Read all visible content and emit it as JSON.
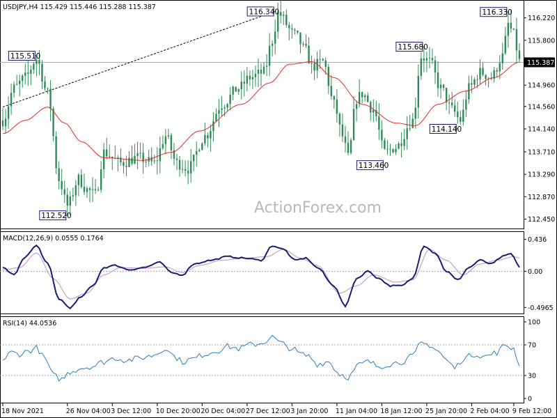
{
  "chart_data": [
    {
      "type": "candlestick",
      "title": "USDJPY,H4  115.429 115.446 115.288 115.387",
      "ylim": [
        112.3,
        116.45
      ],
      "yticks": [
        "116.220",
        "115.800",
        "115.387",
        "114.960",
        "114.560",
        "114.140",
        "113.710",
        "113.290",
        "112.870",
        "112.450"
      ],
      "last_price": "115.387",
      "horizontal_line": 115.387,
      "trendline": {
        "from": [
          0,
          114.55
        ],
        "to": [
          97,
          116.34
        ]
      },
      "annotations": [
        {
          "label": "116.340",
          "bar": 97,
          "price": 116.34
        },
        {
          "label": "115.510",
          "bar": 12,
          "price": 115.51
        },
        {
          "label": "112.520",
          "bar": 23,
          "price": 112.52
        },
        {
          "label": "115.680",
          "bar": 150,
          "price": 115.68
        },
        {
          "label": "114.140",
          "bar": 162,
          "price": 114.14
        },
        {
          "label": "113.460",
          "bar": 136,
          "price": 113.46
        },
        {
          "label": "116.330",
          "bar": 180,
          "price": 116.33
        }
      ],
      "ma_anchors": [
        [
          0,
          114.05
        ],
        [
          8,
          114.3
        ],
        [
          16,
          114.55
        ],
        [
          22,
          114.25
        ],
        [
          28,
          113.9
        ],
        [
          36,
          113.6
        ],
        [
          50,
          113.55
        ],
        [
          60,
          113.7
        ],
        [
          70,
          114.1
        ],
        [
          85,
          114.6
        ],
        [
          95,
          115.0
        ],
        [
          102,
          115.35
        ],
        [
          110,
          115.4
        ],
        [
          118,
          115.1
        ],
        [
          128,
          114.6
        ],
        [
          140,
          114.25
        ],
        [
          147,
          114.2
        ],
        [
          155,
          114.6
        ],
        [
          165,
          114.85
        ],
        [
          175,
          115.1
        ],
        [
          184,
          115.39
        ]
      ],
      "price_anchors": [
        [
          0,
          114.3
        ],
        [
          4,
          114.9
        ],
        [
          8,
          115.1
        ],
        [
          12,
          115.45
        ],
        [
          16,
          114.8
        ],
        [
          20,
          113.2
        ],
        [
          23,
          112.7
        ],
        [
          27,
          113.2
        ],
        [
          30,
          113.0
        ],
        [
          33,
          112.9
        ],
        [
          36,
          113.7
        ],
        [
          42,
          113.5
        ],
        [
          48,
          113.6
        ],
        [
          54,
          113.5
        ],
        [
          58,
          114.0
        ],
        [
          62,
          113.5
        ],
        [
          66,
          113.4
        ],
        [
          72,
          114.0
        ],
        [
          78,
          114.6
        ],
        [
          84,
          114.9
        ],
        [
          88,
          115.1
        ],
        [
          93,
          115.2
        ],
        [
          96,
          115.8
        ],
        [
          98,
          116.3
        ],
        [
          104,
          115.9
        ],
        [
          108,
          115.6
        ],
        [
          110,
          115.3
        ],
        [
          114,
          115.4
        ],
        [
          118,
          114.6
        ],
        [
          121,
          114.0
        ],
        [
          123,
          113.6
        ],
        [
          126,
          114.7
        ],
        [
          128,
          114.8
        ],
        [
          132,
          114.5
        ],
        [
          136,
          113.7
        ],
        [
          140,
          113.8
        ],
        [
          146,
          114.3
        ],
        [
          149,
          115.5
        ],
        [
          152,
          115.4
        ],
        [
          156,
          114.9
        ],
        [
          160,
          114.5
        ],
        [
          163,
          114.3
        ],
        [
          166,
          114.9
        ],
        [
          170,
          115.2
        ],
        [
          174,
          115.1
        ],
        [
          178,
          115.5
        ],
        [
          180,
          116.1
        ],
        [
          182,
          115.9
        ],
        [
          184,
          115.4
        ]
      ],
      "xticks": [
        {
          "label": "18 Nov 2021",
          "bar": 0
        },
        {
          "label": "26 Nov 04:00",
          "bar": 23
        },
        {
          "label": "3 Dec 12:00",
          "bar": 39
        },
        {
          "label": "10 Dec 20:00",
          "bar": 55
        },
        {
          "label": "20 Dec 04:00",
          "bar": 71
        },
        {
          "label": "27 Dec 12:00",
          "bar": 87
        },
        {
          "label": "3 Jan 20:00",
          "bar": 103
        },
        {
          "label": "11 Jan 04:00",
          "bar": 119
        },
        {
          "label": "18 Jan 12:00",
          "bar": 135
        },
        {
          "label": "25 Jan 20:00",
          "bar": 151
        },
        {
          "label": "2 Feb 04:00",
          "bar": 167
        },
        {
          "label": "9 Feb 12:00",
          "bar": 182
        }
      ],
      "bars": 185,
      "watermark": "ActionForex.com"
    },
    {
      "type": "line",
      "title": "MACD(12,26,9) 0.0555 0.1764",
      "ylim": [
        -0.56,
        0.49
      ],
      "yticks": [
        "0.436",
        "0.00",
        "-0.4965"
      ],
      "zero_line": 0,
      "macd_anchors": [
        [
          0,
          0.05
        ],
        [
          4,
          -0.05
        ],
        [
          8,
          0.2
        ],
        [
          12,
          0.35
        ],
        [
          16,
          0.1
        ],
        [
          20,
          -0.38
        ],
        [
          24,
          -0.5
        ],
        [
          28,
          -0.35
        ],
        [
          32,
          -0.2
        ],
        [
          36,
          0.05
        ],
        [
          40,
          0.08
        ],
        [
          45,
          0.02
        ],
        [
          50,
          0.05
        ],
        [
          56,
          0.12
        ],
        [
          60,
          -0.02
        ],
        [
          64,
          -0.05
        ],
        [
          68,
          0.1
        ],
        [
          74,
          0.15
        ],
        [
          80,
          0.2
        ],
        [
          86,
          0.18
        ],
        [
          92,
          0.15
        ],
        [
          96,
          0.35
        ],
        [
          100,
          0.3
        ],
        [
          104,
          0.15
        ],
        [
          108,
          0.18
        ],
        [
          112,
          0.05
        ],
        [
          118,
          -0.2
        ],
        [
          122,
          -0.48
        ],
        [
          126,
          -0.1
        ],
        [
          130,
          0.0
        ],
        [
          134,
          -0.1
        ],
        [
          138,
          -0.2
        ],
        [
          142,
          -0.2
        ],
        [
          146,
          -0.1
        ],
        [
          150,
          0.35
        ],
        [
          154,
          0.25
        ],
        [
          158,
          0.0
        ],
        [
          162,
          -0.12
        ],
        [
          166,
          0.05
        ],
        [
          170,
          0.15
        ],
        [
          174,
          0.1
        ],
        [
          178,
          0.2
        ],
        [
          181,
          0.24
        ],
        [
          184,
          0.06
        ]
      ],
      "signal_anchors": [
        [
          0,
          0.02
        ],
        [
          6,
          0.05
        ],
        [
          12,
          0.25
        ],
        [
          18,
          -0.1
        ],
        [
          24,
          -0.38
        ],
        [
          30,
          -0.3
        ],
        [
          36,
          -0.05
        ],
        [
          42,
          0.05
        ],
        [
          50,
          0.04
        ],
        [
          58,
          0.06
        ],
        [
          64,
          -0.02
        ],
        [
          70,
          0.08
        ],
        [
          78,
          0.15
        ],
        [
          86,
          0.18
        ],
        [
          94,
          0.2
        ],
        [
          100,
          0.3
        ],
        [
          106,
          0.18
        ],
        [
          112,
          0.08
        ],
        [
          120,
          -0.3
        ],
        [
          126,
          -0.2
        ],
        [
          132,
          -0.05
        ],
        [
          140,
          -0.15
        ],
        [
          146,
          -0.12
        ],
        [
          152,
          0.3
        ],
        [
          158,
          0.15
        ],
        [
          164,
          -0.05
        ],
        [
          170,
          0.1
        ],
        [
          176,
          0.15
        ],
        [
          182,
          0.2
        ],
        [
          184,
          0.18
        ]
      ],
      "bars": 185
    },
    {
      "type": "line",
      "title": "RSI(14) 44.0536",
      "ylim": [
        0,
        100
      ],
      "yticks": [
        "100",
        "70",
        "30",
        "0"
      ],
      "levels": [
        70,
        30
      ],
      "rsi_anchors": [
        [
          0,
          50
        ],
        [
          3,
          60
        ],
        [
          6,
          58
        ],
        [
          9,
          62
        ],
        [
          12,
          66
        ],
        [
          15,
          52
        ],
        [
          18,
          30
        ],
        [
          21,
          25
        ],
        [
          24,
          35
        ],
        [
          28,
          40
        ],
        [
          32,
          42
        ],
        [
          36,
          48
        ],
        [
          40,
          53
        ],
        [
          44,
          50
        ],
        [
          48,
          52
        ],
        [
          52,
          55
        ],
        [
          56,
          60
        ],
        [
          58,
          67
        ],
        [
          61,
          55
        ],
        [
          64,
          48
        ],
        [
          68,
          52
        ],
        [
          72,
          58
        ],
        [
          76,
          62
        ],
        [
          80,
          68
        ],
        [
          84,
          65
        ],
        [
          88,
          70
        ],
        [
          92,
          72
        ],
        [
          96,
          80
        ],
        [
          99,
          72
        ],
        [
          103,
          65
        ],
        [
          106,
          58
        ],
        [
          109,
          55
        ],
        [
          112,
          45
        ],
        [
          116,
          48
        ],
        [
          120,
          32
        ],
        [
          123,
          28
        ],
        [
          127,
          44
        ],
        [
          130,
          48
        ],
        [
          134,
          42
        ],
        [
          138,
          45
        ],
        [
          142,
          48
        ],
        [
          146,
          55
        ],
        [
          149,
          72
        ],
        [
          152,
          70
        ],
        [
          155,
          62
        ],
        [
          158,
          50
        ],
        [
          161,
          40
        ],
        [
          164,
          52
        ],
        [
          168,
          58
        ],
        [
          172,
          55
        ],
        [
          176,
          60
        ],
        [
          179,
          70
        ],
        [
          182,
          65
        ],
        [
          184,
          44
        ]
      ],
      "bars": 185
    }
  ],
  "colors": {
    "candle": "#2e8b57",
    "ma": "#e22b2b",
    "trendline": "#000000",
    "hline": "#b0b0b0",
    "macd": "#1a1a7a",
    "signal": "#c090c0",
    "rsi": "#2a7fc0",
    "level": "#a0a0a0",
    "callout_border": "#1a1a7a",
    "price_label_bg": "#000000",
    "price_label_fg": "#ffffff"
  }
}
